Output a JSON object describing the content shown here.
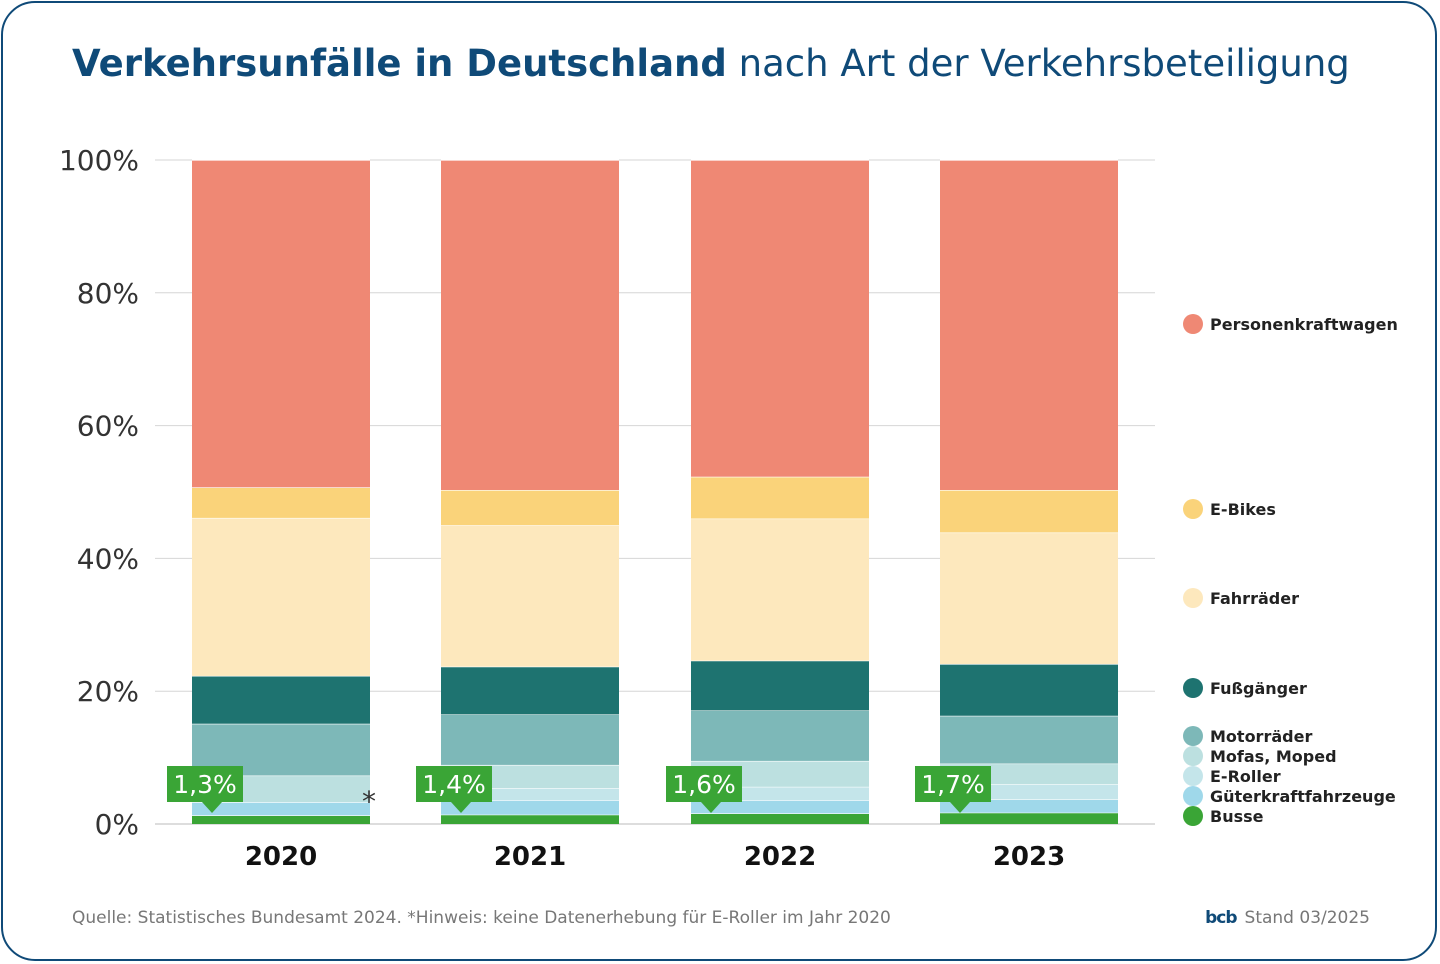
{
  "title": {
    "bold": "Verkehrsunfälle in Deutschland",
    "light": "nach Art der Verkehrsbeteiligung"
  },
  "footer": {
    "source": "Quelle: Statistisches Bundesamt 2024. *Hinweis: keine Datenerhebung für E-Roller im Jahr 2020",
    "logo": "bcb",
    "stand": "Stand 03/2025"
  },
  "chart_data": {
    "type": "bar",
    "stacked": true,
    "categories": [
      "2020",
      "2021",
      "2022",
      "2023"
    ],
    "yticks": [
      "0%",
      "20%",
      "40%",
      "60%",
      "80%",
      "100%"
    ],
    "ylim": [
      0,
      100
    ],
    "grid": true,
    "legend_position": "right",
    "series": [
      {
        "name": "Busse",
        "color": "#3aa536",
        "values": [
          1.3,
          1.4,
          1.6,
          1.7
        ]
      },
      {
        "name": "Güterkraftfahrzeuge",
        "color": "#9fd8ea",
        "values": [
          2.0,
          2.2,
          2.0,
          2.0
        ]
      },
      {
        "name": "E-Roller",
        "color": "#c4e5ea",
        "values": [
          0,
          1.8,
          2.0,
          2.3
        ]
      },
      {
        "name": "Mofas, Moped",
        "color": "#bce0e0",
        "values": [
          4.0,
          3.5,
          3.9,
          3.1
        ]
      },
      {
        "name": "Motorräder",
        "color": "#7db8b8",
        "values": [
          7.8,
          7.6,
          7.6,
          7.2
        ]
      },
      {
        "name": "Fußgänger",
        "color": "#1e7370",
        "values": [
          7.2,
          7.2,
          7.5,
          7.8
        ]
      },
      {
        "name": "Fahrräder",
        "color": "#fde8bd",
        "values": [
          23.8,
          21.3,
          21.4,
          19.8
        ]
      },
      {
        "name": "E-Bikes",
        "color": "#fad37a",
        "values": [
          4.6,
          5.3,
          6.3,
          6.4
        ]
      },
      {
        "name": "Personenkraftwagen",
        "color": "#ef8874",
        "values": [
          49.3,
          49.7,
          47.7,
          49.7
        ]
      }
    ],
    "badges": [
      "1,3%",
      "1,4%",
      "1,6%",
      "1,7%"
    ],
    "badge_color": "#3aa536",
    "footnote_marker": "*"
  }
}
